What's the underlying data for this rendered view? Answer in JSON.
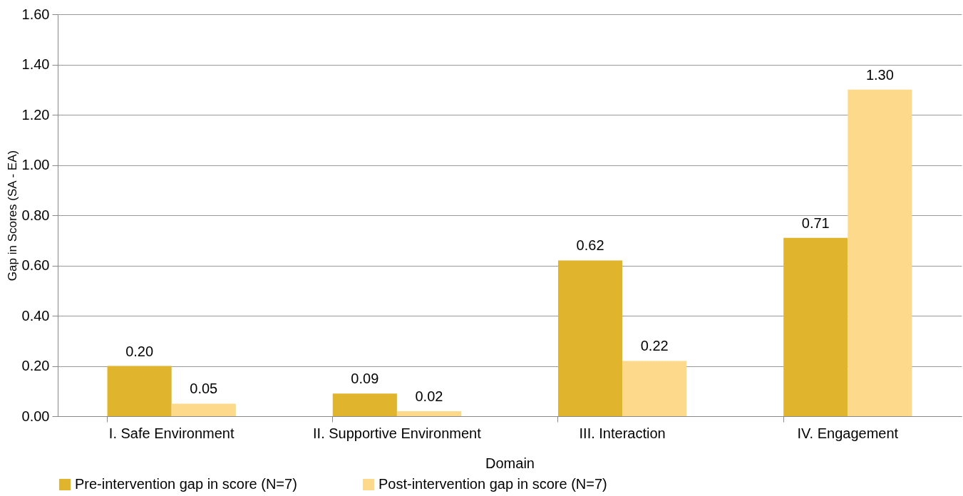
{
  "chart_data": {
    "type": "bar",
    "xlabel": "Domain",
    "ylabel": "Gap in Scores (SA - EA)",
    "categories": [
      "I. Safe Environment",
      "II. Supportive Environment",
      "III. Interaction",
      "IV. Engagement"
    ],
    "series": [
      {
        "name": "Pre-intervention gap in score (N=7)",
        "color": "#e0b42c",
        "values": [
          0.2,
          0.09,
          0.62,
          0.71
        ],
        "value_labels": [
          "0.20",
          "0.09",
          "0.62",
          "0.71"
        ]
      },
      {
        "name": "Post-intervention gap in score (N=7)",
        "color": "#fdd98b",
        "values": [
          0.05,
          0.02,
          0.22,
          1.3
        ],
        "value_labels": [
          "0.05",
          "0.02",
          "0.22",
          "1.30"
        ]
      }
    ],
    "ylim": [
      0,
      1.6
    ],
    "yticks": [
      {
        "value": 0,
        "label": "0.00"
      },
      {
        "value": 0.2,
        "label": "0.20"
      },
      {
        "value": 0.4,
        "label": "0.40"
      },
      {
        "value": 0.6,
        "label": "0.60"
      },
      {
        "value": 0.8,
        "label": "0.80"
      },
      {
        "value": 1.0,
        "label": "1.00"
      },
      {
        "value": 1.2,
        "label": "1.20"
      },
      {
        "value": 1.4,
        "label": "1.40"
      },
      {
        "value": 1.6,
        "label": "1.60"
      }
    ],
    "grid": "y",
    "legend": "bottom"
  }
}
